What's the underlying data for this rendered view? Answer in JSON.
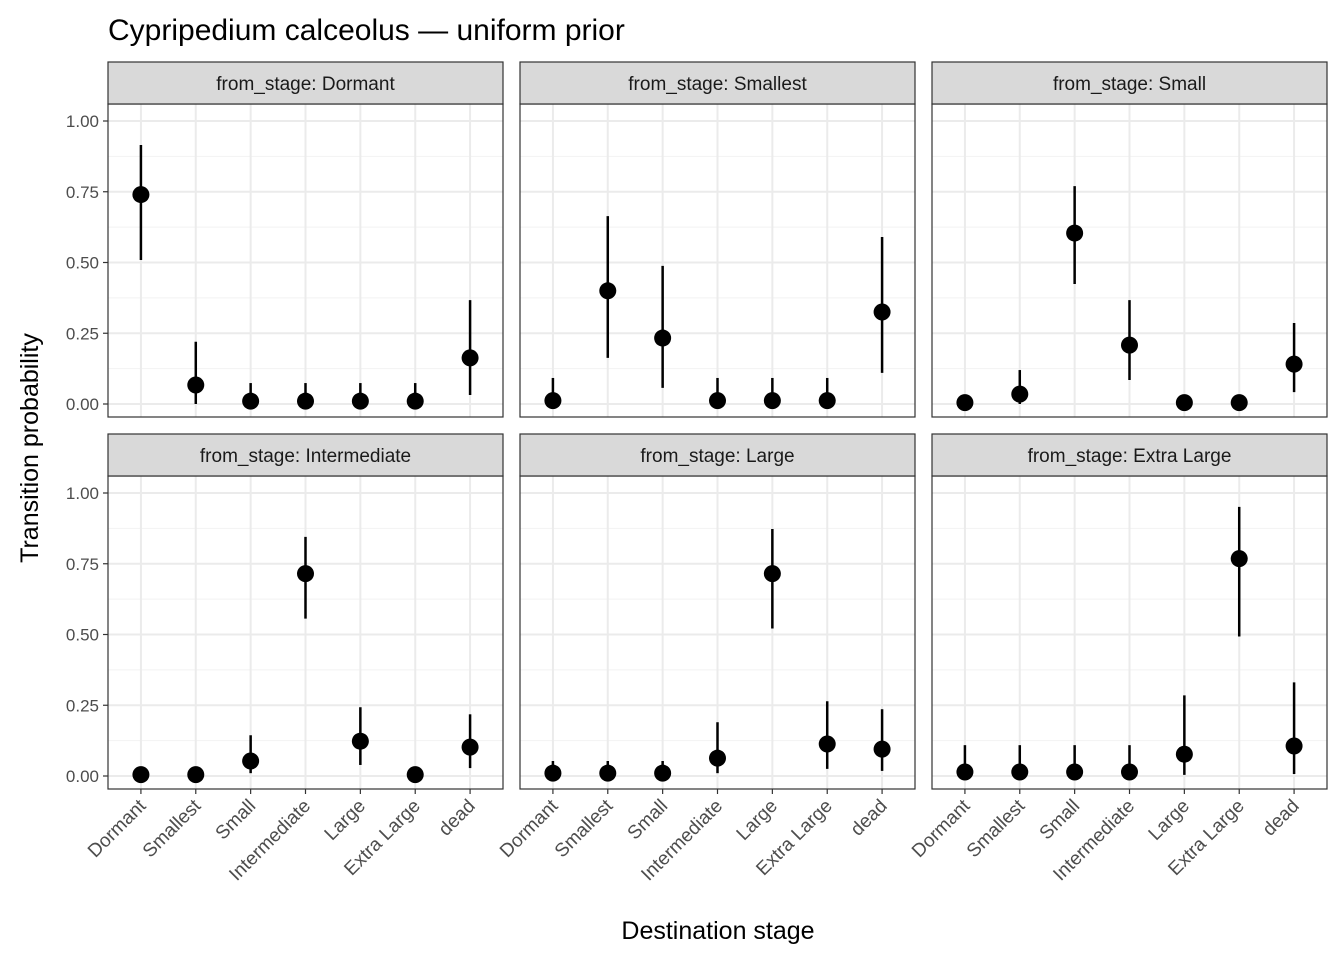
{
  "chart_data": {
    "type": "scatter",
    "title": "Cypripedium calceolus — uniform prior",
    "xlabel": "Destination stage",
    "ylabel": "Transition probability",
    "ylim": [
      0,
      1
    ],
    "yticks": [
      "0.00",
      "0.25",
      "0.50",
      "0.75",
      "1.00"
    ],
    "yticks_values": [
      0,
      0.25,
      0.5,
      0.75,
      1
    ],
    "grid": true,
    "categories": [
      "Dormant",
      "Smallest",
      "Small",
      "Intermediate",
      "Large",
      "Extra Large",
      "dead"
    ],
    "panels": [
      {
        "label": "from_stage: Dormant",
        "mean": [
          0.74,
          0.067,
          0.01,
          0.01,
          0.01,
          0.01,
          0.163
        ],
        "lower": [
          0.509,
          0.0,
          0.0,
          0.0,
          0.0,
          0.0,
          0.032
        ],
        "upper": [
          0.915,
          0.22,
          0.074,
          0.074,
          0.074,
          0.074,
          0.367
        ]
      },
      {
        "label": "from_stage: Smallest",
        "mean": [
          0.012,
          0.4,
          0.233,
          0.012,
          0.012,
          0.012,
          0.325
        ],
        "lower": [
          0.0,
          0.163,
          0.057,
          0.0,
          0.0,
          0.0,
          0.11
        ],
        "upper": [
          0.092,
          0.664,
          0.488,
          0.092,
          0.092,
          0.092,
          0.59
        ]
      },
      {
        "label": "from_stage: Small",
        "mean": [
          0.005,
          0.035,
          0.604,
          0.208,
          0.005,
          0.005,
          0.141
        ],
        "lower": [
          0.0,
          0.0,
          0.424,
          0.085,
          0.0,
          0.0,
          0.042
        ],
        "upper": [
          0.03,
          0.12,
          0.77,
          0.367,
          0.03,
          0.03,
          0.286
        ]
      },
      {
        "label": "from_stage: Intermediate",
        "mean": [
          0.005,
          0.005,
          0.053,
          0.715,
          0.123,
          0.005,
          0.102
        ],
        "lower": [
          0.0,
          0.0,
          0.01,
          0.556,
          0.039,
          0.0,
          0.028
        ],
        "upper": [
          0.005,
          0.005,
          0.144,
          0.845,
          0.243,
          0.005,
          0.218
        ]
      },
      {
        "label": "from_stage: Large",
        "mean": [
          0.01,
          0.01,
          0.01,
          0.063,
          0.715,
          0.113,
          0.095
        ],
        "lower": [
          0.0,
          0.0,
          0.0,
          0.01,
          0.521,
          0.025,
          0.018
        ],
        "upper": [
          0.053,
          0.053,
          0.053,
          0.19,
          0.873,
          0.264,
          0.236
        ]
      },
      {
        "label": "from_stage: Extra Large",
        "mean": [
          0.014,
          0.014,
          0.014,
          0.014,
          0.077,
          0.768,
          0.106
        ],
        "lower": [
          0.0,
          0.0,
          0.0,
          0.0,
          0.004,
          0.493,
          0.007
        ],
        "upper": [
          0.109,
          0.109,
          0.109,
          0.109,
          0.285,
          0.951,
          0.331
        ]
      }
    ]
  }
}
